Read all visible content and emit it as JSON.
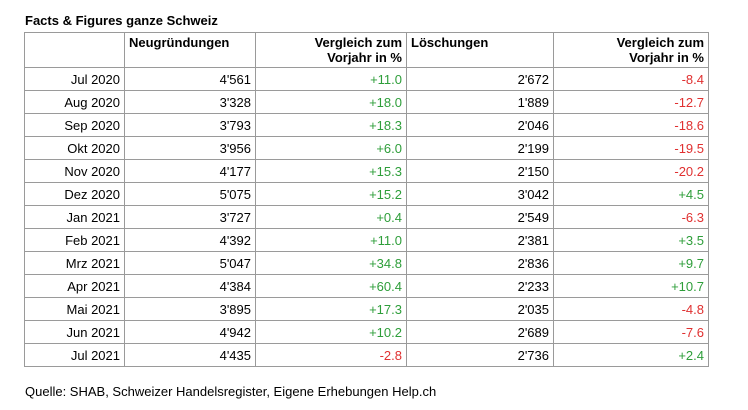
{
  "title": "Facts & Figures ganze Schweiz",
  "headers": [
    "",
    "Neugründungen",
    "Vergleich zum Vorjahr in %",
    "Löschungen",
    "Vergleich zum Vorjahr in %"
  ],
  "header_lines": [
    [
      ""
    ],
    [
      "Neugründungen"
    ],
    [
      "Vergleich zum",
      "Vorjahr in %"
    ],
    [
      "Löschungen"
    ],
    [
      "Vergleich zum",
      "Vorjahr in %"
    ]
  ],
  "rows": [
    {
      "month": "Jul 2020",
      "neu": "4'561",
      "neu_pct": "+11.0",
      "loe": "2'672",
      "loe_pct": "-8.4"
    },
    {
      "month": "Aug 2020",
      "neu": "3'328",
      "neu_pct": "+18.0",
      "loe": "1'889",
      "loe_pct": "-12.7"
    },
    {
      "month": "Sep 2020",
      "neu": "3'793",
      "neu_pct": "+18.3",
      "loe": "2'046",
      "loe_pct": "-18.6"
    },
    {
      "month": "Okt 2020",
      "neu": "3'956",
      "neu_pct": "+6.0",
      "loe": "2'199",
      "loe_pct": "-19.5"
    },
    {
      "month": "Nov 2020",
      "neu": "4'177",
      "neu_pct": "+15.3",
      "loe": "2'150",
      "loe_pct": "-20.2"
    },
    {
      "month": "Dez 2020",
      "neu": "5'075",
      "neu_pct": "+15.2",
      "loe": "3'042",
      "loe_pct": "+4.5"
    },
    {
      "month": "Jan 2021",
      "neu": "3'727",
      "neu_pct": "+0.4",
      "loe": "2'549",
      "loe_pct": "-6.3"
    },
    {
      "month": "Feb 2021",
      "neu": "4'392",
      "neu_pct": "+11.0",
      "loe": "2'381",
      "loe_pct": "+3.5"
    },
    {
      "month": "Mrz 2021",
      "neu": "5'047",
      "neu_pct": "+34.8",
      "loe": "2'836",
      "loe_pct": "+9.7"
    },
    {
      "month": "Apr 2021",
      "neu": "4'384",
      "neu_pct": "+60.4",
      "loe": "2'233",
      "loe_pct": "+10.7"
    },
    {
      "month": "Mai 2021",
      "neu": "3'895",
      "neu_pct": "+17.3",
      "loe": "2'035",
      "loe_pct": "-4.8"
    },
    {
      "month": "Jun 2021",
      "neu": "4'942",
      "neu_pct": "+10.2",
      "loe": "2'689",
      "loe_pct": "-7.6"
    },
    {
      "month": "Jul 2021",
      "neu": "4'435",
      "neu_pct": "-2.8",
      "loe": "2'736",
      "loe_pct": "+2.4"
    }
  ],
  "colors": {
    "positive": "#2e9e3a",
    "negative": "#e03030"
  },
  "source": "Quelle: SHAB, Schweizer Handelsregister, Eigene Erhebungen Help.ch"
}
